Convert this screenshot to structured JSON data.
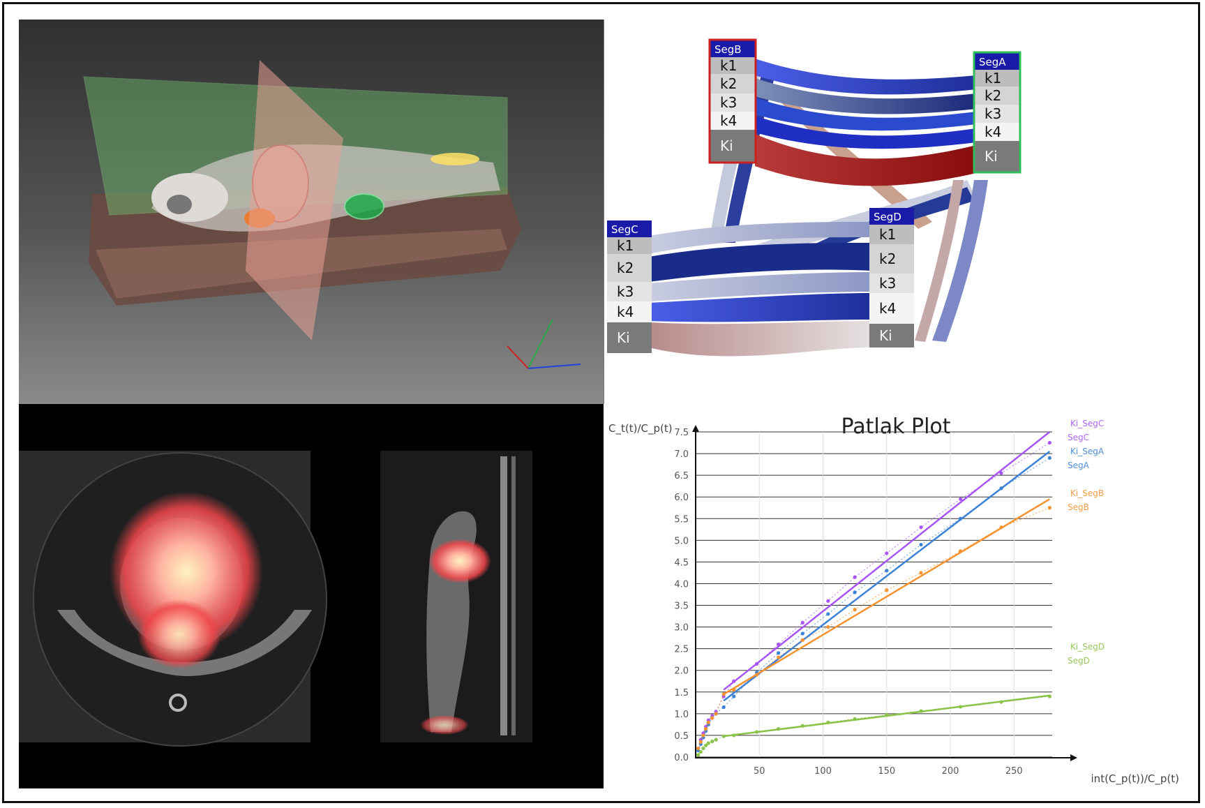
{
  "panels": {
    "volume_render": {
      "label": ""
    },
    "ct_slices": {
      "label": ""
    }
  },
  "network": {
    "segments": [
      {
        "id": "SegB",
        "rows": [
          "k1",
          "k2",
          "k3",
          "k4",
          "Ki"
        ],
        "highlight_color": "#cc1f1f"
      },
      {
        "id": "SegA",
        "rows": [
          "k1",
          "k2",
          "k3",
          "k4",
          "Ki"
        ],
        "highlight_color": "#2fbf5a"
      },
      {
        "id": "SegC",
        "rows": [
          "k1",
          "k2",
          "k3",
          "k4",
          "Ki"
        ],
        "highlight_color": ""
      },
      {
        "id": "SegD",
        "rows": [
          "k1",
          "k2",
          "k3",
          "k4",
          "Ki"
        ],
        "highlight_color": ""
      }
    ],
    "header_color": "#1a1aa8"
  },
  "chart_data": {
    "type": "line",
    "title": "Patlak Plot",
    "xlabel": "int(C_p(t))/C_p(t)",
    "ylabel": "C_t(t)/C_p(t)",
    "xlim": [
      0,
      280
    ],
    "ylim": [
      0,
      7.5
    ],
    "x_ticks": [
      50,
      100,
      150,
      200,
      250
    ],
    "y_ticks": [
      0.0,
      0.5,
      1.0,
      1.5,
      2.0,
      2.5,
      3.0,
      3.5,
      4.0,
      4.5,
      5.0,
      5.5,
      6.0,
      6.5,
      7.0,
      7.5
    ],
    "grid": true,
    "legend_position": "right",
    "series": [
      {
        "name": "Ki_SegC",
        "kind": "fit",
        "color": "#a855f7",
        "x": [
          22,
          278
        ],
        "y": [
          1.55,
          7.5
        ]
      },
      {
        "name": "SegC",
        "kind": "points",
        "color": "#a855f7",
        "x": [
          2,
          4,
          6,
          8,
          10,
          13,
          16,
          22,
          30,
          48,
          65,
          84,
          104,
          125,
          150,
          177,
          208,
          240,
          278
        ],
        "y": [
          0.2,
          0.4,
          0.55,
          0.7,
          0.85,
          0.95,
          1.05,
          1.4,
          1.75,
          2.15,
          2.6,
          3.1,
          3.6,
          4.15,
          4.7,
          5.3,
          5.95,
          6.55,
          7.25
        ]
      },
      {
        "name": "Ki_SegA",
        "kind": "fit",
        "color": "#3b82d6",
        "x": [
          22,
          278
        ],
        "y": [
          1.3,
          7.05
        ]
      },
      {
        "name": "SegA",
        "kind": "points",
        "color": "#3b82d6",
        "x": [
          2,
          4,
          6,
          8,
          10,
          13,
          16,
          22,
          30,
          48,
          65,
          84,
          104,
          125,
          150,
          177,
          208,
          240,
          278
        ],
        "y": [
          0.15,
          0.3,
          0.45,
          0.6,
          0.75,
          0.9,
          1.0,
          1.15,
          1.4,
          1.95,
          2.4,
          2.85,
          3.3,
          3.8,
          4.3,
          4.9,
          5.5,
          6.2,
          6.9
        ]
      },
      {
        "name": "Ki_SegB",
        "kind": "fit",
        "color": "#f5922f",
        "x": [
          22,
          278
        ],
        "y": [
          1.45,
          5.95
        ]
      },
      {
        "name": "SegB",
        "kind": "points",
        "color": "#f5922f",
        "x": [
          2,
          4,
          6,
          8,
          10,
          13,
          16,
          22,
          30,
          48,
          65,
          84,
          104,
          125,
          150,
          177,
          208,
          240,
          278
        ],
        "y": [
          0.2,
          0.35,
          0.5,
          0.65,
          0.8,
          0.9,
          1.0,
          1.45,
          1.55,
          1.9,
          2.3,
          2.7,
          3.0,
          3.4,
          3.85,
          4.25,
          4.75,
          5.3,
          5.75
        ]
      },
      {
        "name": "Ki_SegD",
        "kind": "fit",
        "color": "#8bc34a",
        "x": [
          22,
          278
        ],
        "y": [
          0.48,
          1.42
        ]
      },
      {
        "name": "SegD",
        "kind": "points",
        "color": "#8bc34a",
        "x": [
          2,
          4,
          6,
          8,
          10,
          13,
          16,
          22,
          30,
          48,
          65,
          84,
          104,
          125,
          150,
          177,
          208,
          240,
          278
        ],
        "y": [
          0.05,
          0.12,
          0.2,
          0.27,
          0.32,
          0.36,
          0.4,
          0.48,
          0.5,
          0.58,
          0.65,
          0.72,
          0.8,
          0.88,
          0.97,
          1.06,
          1.16,
          1.27,
          1.4
        ]
      }
    ]
  }
}
